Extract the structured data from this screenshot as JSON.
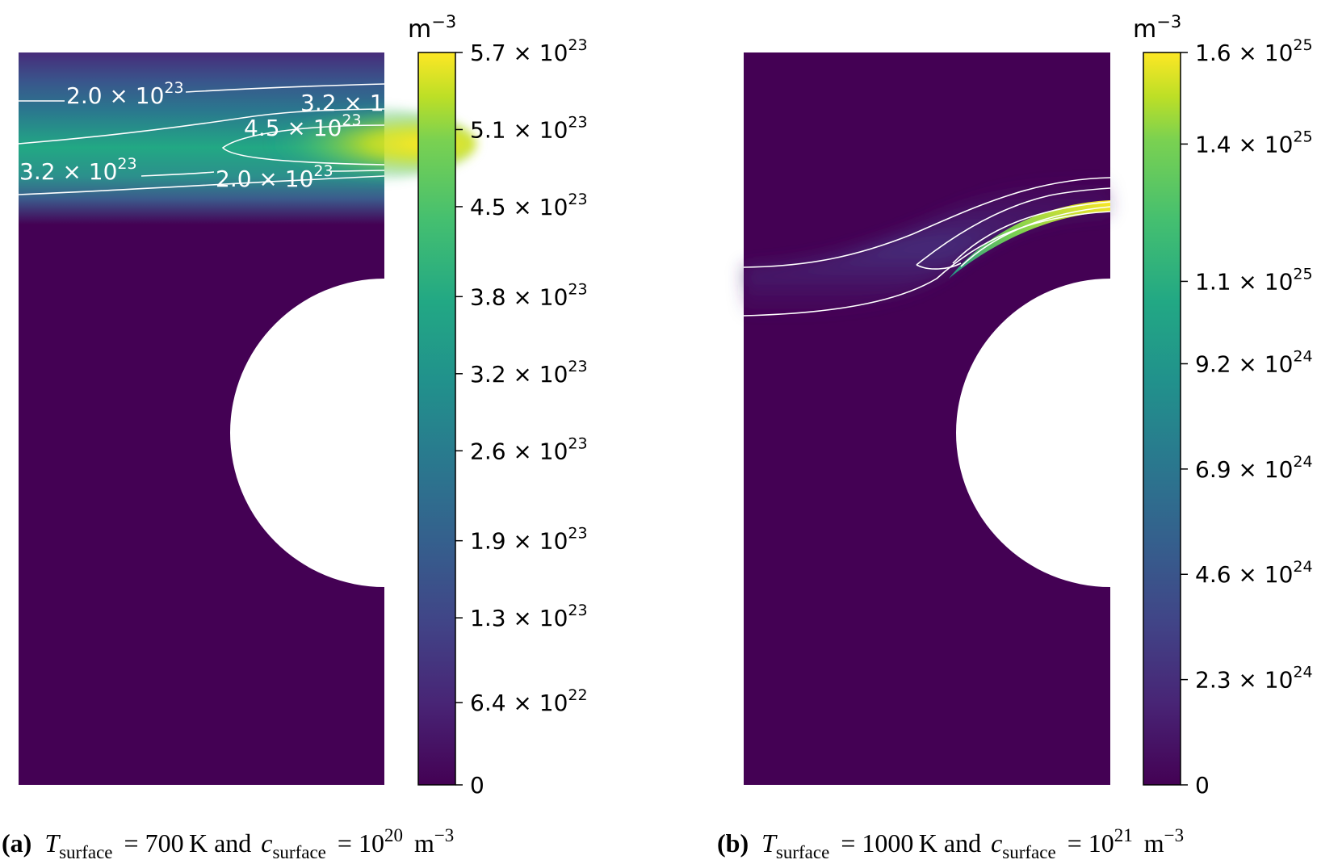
{
  "chart_data": [
    {
      "type": "heatmap",
      "caption": {
        "label": "(a)",
        "t_symbol": "T",
        "t_sub": "surface",
        "t_eq": "= 700 K and",
        "c_symbol": "c",
        "c_sub": "surface",
        "c_eq": "= 10",
        "c_exp": "20",
        "unit": "m",
        "unit_exp": "−3"
      },
      "colorbar": {
        "unit": "m",
        "unit_exp": "−3",
        "range": [
          0,
          5.7e+23
        ],
        "ticks": [
          {
            "value": 5.7e+23,
            "mant": "5.7 × 10",
            "exp": "23"
          },
          {
            "value": 5.1e+23,
            "mant": "5.1 × 10",
            "exp": "23"
          },
          {
            "value": 4.5e+23,
            "mant": "4.5 × 10",
            "exp": "23"
          },
          {
            "value": 3.8e+23,
            "mant": "3.8 × 10",
            "exp": "23"
          },
          {
            "value": 3.2e+23,
            "mant": "3.2 × 10",
            "exp": "23"
          },
          {
            "value": 2.6e+23,
            "mant": "2.6 × 10",
            "exp": "23"
          },
          {
            "value": 1.9e+23,
            "mant": "1.9 × 10",
            "exp": "23"
          },
          {
            "value": 1.3e+23,
            "mant": "1.3 × 10",
            "exp": "23"
          },
          {
            "value": 6.4e+22,
            "mant": "6.4 × 10",
            "exp": "22"
          },
          {
            "value": 0,
            "mant": "0",
            "exp": ""
          }
        ]
      },
      "contour_labels": [
        {
          "mant": "2.0 × 10",
          "exp": "23"
        },
        {
          "mant": "3.2 × 1",
          "exp": ""
        },
        {
          "mant": "4.5 × 10",
          "exp": "23"
        },
        {
          "mant": "3.2 × 10",
          "exp": "23"
        },
        {
          "mant": "2.0 × 10",
          "exp": "23"
        }
      ]
    },
    {
      "type": "heatmap",
      "caption": {
        "label": "(b)",
        "t_symbol": "T",
        "t_sub": "surface",
        "t_eq": "= 1000 K and",
        "c_symbol": "c",
        "c_sub": "surface",
        "c_eq": "= 10",
        "c_exp": "21",
        "unit": "m",
        "unit_exp": "−3"
      },
      "colorbar": {
        "unit": "m",
        "unit_exp": "−3",
        "range": [
          0,
          1.6e+25
        ],
        "ticks": [
          {
            "value": 1.6e+25,
            "mant": "1.6 × 10",
            "exp": "25"
          },
          {
            "value": 1.4e+25,
            "mant": "1.4 × 10",
            "exp": "25"
          },
          {
            "value": 1.1e+25,
            "mant": "1.1 × 10",
            "exp": "25"
          },
          {
            "value": 9.2e+24,
            "mant": "9.2 × 10",
            "exp": "24"
          },
          {
            "value": 6.9e+24,
            "mant": "6.9 × 10",
            "exp": "24"
          },
          {
            "value": 4.6e+24,
            "mant": "4.6 × 10",
            "exp": "24"
          },
          {
            "value": 2.3e+24,
            "mant": "2.3 × 10",
            "exp": "24"
          },
          {
            "value": 0,
            "mant": "0",
            "exp": ""
          }
        ]
      },
      "contour_labels": []
    }
  ],
  "colormap": "viridis",
  "colors": {
    "low": "#440154",
    "mid": "#21918c",
    "high": "#fde725",
    "contour": "#ffffff"
  }
}
